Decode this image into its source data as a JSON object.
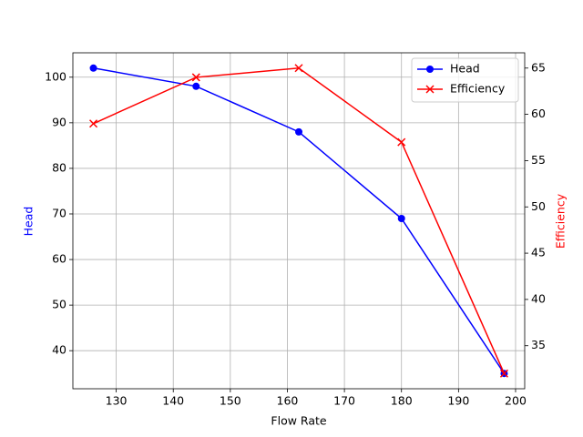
{
  "chart_data": {
    "type": "line",
    "x_label": "Flow Rate",
    "y_label": "Head",
    "y2_label": "Efficiency",
    "x": [
      126,
      144,
      162,
      180,
      198
    ],
    "series": [
      {
        "name": "Head",
        "color": "#0000ff",
        "marker": "o",
        "values": [
          102,
          98,
          88,
          69,
          35
        ]
      },
      {
        "name": "Efficiency",
        "color": "#ff0000",
        "marker": "x",
        "axis": "y2",
        "values": [
          59,
          64,
          65,
          57,
          32
        ]
      }
    ],
    "xlim": [
      122.4,
      201.6
    ],
    "xticks": [
      130,
      140,
      150,
      160,
      170,
      180,
      190,
      200
    ],
    "ylim": [
      31.65,
      105.35
    ],
    "yticks": [
      40,
      50,
      60,
      70,
      80,
      90,
      100
    ],
    "y2lim": [
      30.35,
      66.65
    ],
    "y2ticks": [
      35,
      40,
      45,
      50,
      55,
      60,
      65
    ],
    "grid": true,
    "legend": "upper right"
  }
}
